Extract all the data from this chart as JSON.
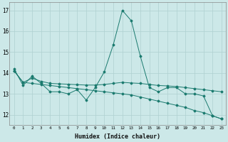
{
  "xlabel": "Humidex (Indice chaleur)",
  "x": [
    0,
    1,
    2,
    3,
    4,
    5,
    6,
    7,
    8,
    9,
    10,
    11,
    12,
    13,
    14,
    15,
    16,
    17,
    18,
    19,
    20,
    21,
    22,
    23
  ],
  "line_jagged": [
    14.2,
    13.4,
    13.85,
    13.5,
    13.1,
    13.1,
    13.0,
    13.2,
    12.7,
    13.3,
    14.05,
    15.35,
    17.0,
    16.5,
    14.8,
    13.3,
    13.1,
    13.3,
    13.3,
    13.0,
    13.0,
    12.9,
    11.95,
    11.8
  ],
  "line_upper": [
    14.1,
    13.55,
    13.75,
    13.6,
    13.5,
    13.48,
    13.46,
    13.44,
    13.42,
    13.42,
    13.45,
    13.5,
    13.55,
    13.52,
    13.5,
    13.45,
    13.4,
    13.38,
    13.35,
    13.3,
    13.25,
    13.2,
    13.15,
    13.1
  ],
  "line_lower": [
    14.1,
    13.55,
    13.5,
    13.45,
    13.4,
    13.35,
    13.3,
    13.25,
    13.2,
    13.15,
    13.1,
    13.05,
    13.0,
    12.95,
    12.85,
    12.75,
    12.65,
    12.55,
    12.45,
    12.35,
    12.2,
    12.1,
    11.95,
    11.8
  ],
  "color": "#1a7a6e",
  "bg_color": "#cce8e8",
  "grid_color": "#afd0d0",
  "xlim": [
    -0.5,
    23.5
  ],
  "ylim": [
    11.5,
    17.4
  ],
  "yticks": [
    12,
    13,
    14,
    15,
    16,
    17
  ],
  "xticks": [
    0,
    1,
    2,
    3,
    4,
    5,
    6,
    7,
    8,
    9,
    10,
    11,
    12,
    13,
    14,
    15,
    16,
    17,
    18,
    19,
    20,
    21,
    22,
    23
  ],
  "figsize": [
    3.2,
    2.0
  ],
  "dpi": 100
}
